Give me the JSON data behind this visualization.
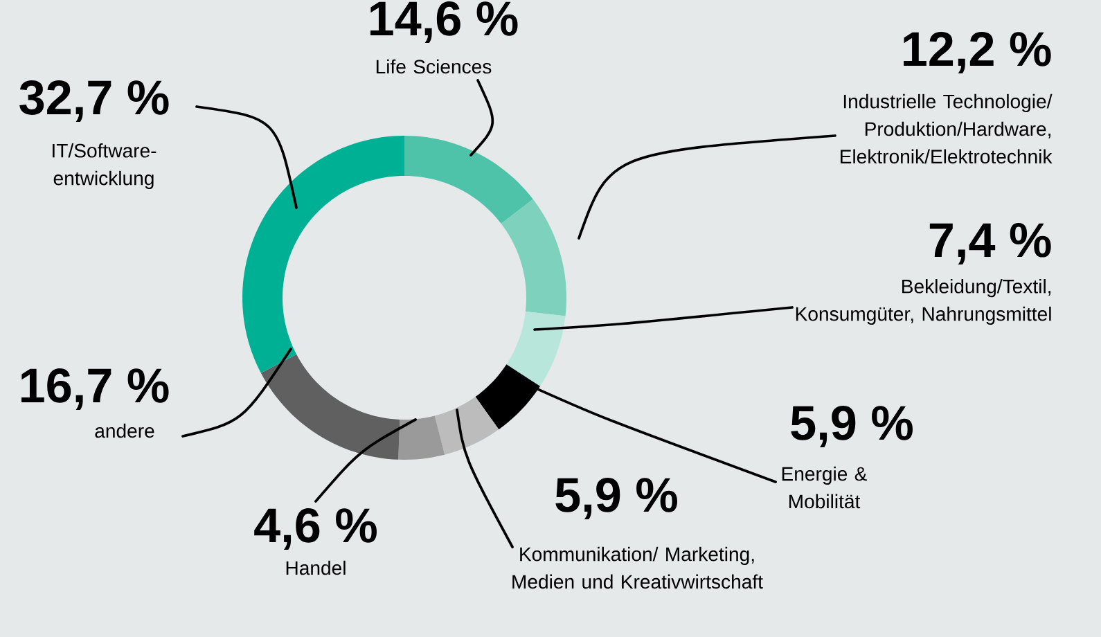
{
  "chart_data": {
    "type": "donut",
    "categories": [
      "Life Sciences",
      "Industrielle Technologie/ Produktion/Hardware, Elektronik/Elektrotechnik",
      "Bekleidung/Textil, Konsumgüter, Nahrungsmittel",
      "Energie & Mobilität",
      "Kommunikation/ Marketing, Medien und Kreativwirtschaft",
      "Handel",
      "andere",
      "IT/Software-entwicklung"
    ],
    "values": [
      14.6,
      12.2,
      7.4,
      5.9,
      5.9,
      4.6,
      16.7,
      32.7
    ],
    "value_labels": [
      "14,6 %",
      "12,2 %",
      "7,4 %",
      "5,9 %",
      "5,9 %",
      "4,6 %",
      "16,7 %",
      "32,7 %"
    ],
    "colors": [
      "#4fc3a9",
      "#7dd1bd",
      "#b8e6da",
      "#000000",
      "#bcbcbc",
      "#9a9a9a",
      "#606060",
      "#00b094"
    ]
  }
}
